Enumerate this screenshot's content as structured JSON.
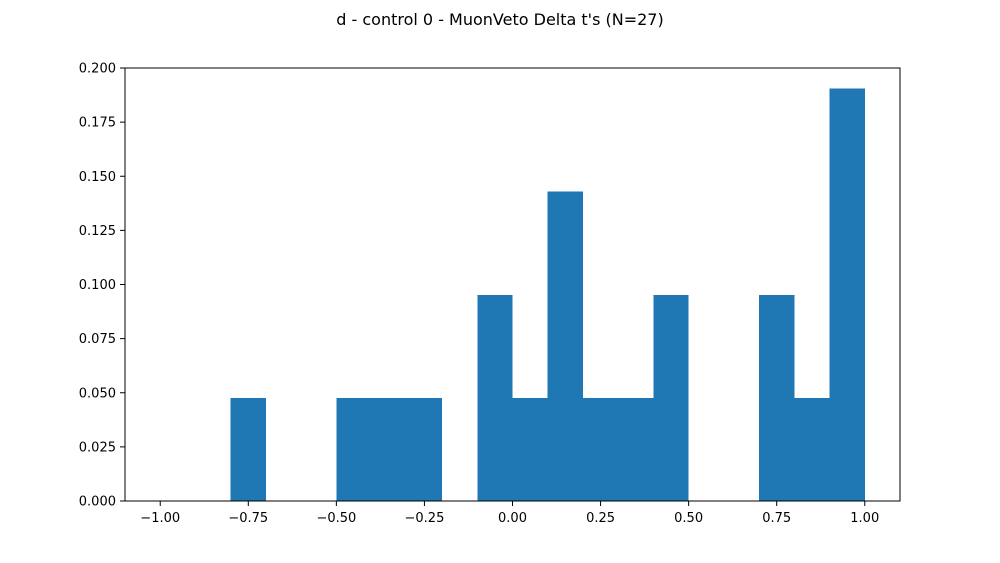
{
  "chart_data": {
    "type": "bar",
    "title": "d - control 0 - MuonVeto Delta t's (N=27)",
    "xlabel": "",
    "ylabel": "",
    "xlim": [
      -1.1,
      1.1
    ],
    "ylim": [
      0,
      0.2
    ],
    "bar_color": "#1f77b4",
    "bins": [
      {
        "x0": -0.8,
        "x1": -0.7,
        "value": 0.0476
      },
      {
        "x0": -0.5,
        "x1": -0.4,
        "value": 0.0476
      },
      {
        "x0": -0.4,
        "x1": -0.3,
        "value": 0.0476
      },
      {
        "x0": -0.3,
        "x1": -0.2,
        "value": 0.0476
      },
      {
        "x0": -0.1,
        "x1": 0.0,
        "value": 0.0952
      },
      {
        "x0": 0.0,
        "x1": 0.1,
        "value": 0.0476
      },
      {
        "x0": 0.1,
        "x1": 0.2,
        "value": 0.1429
      },
      {
        "x0": 0.2,
        "x1": 0.3,
        "value": 0.0476
      },
      {
        "x0": 0.3,
        "x1": 0.4,
        "value": 0.0476
      },
      {
        "x0": 0.4,
        "x1": 0.5,
        "value": 0.0952
      },
      {
        "x0": 0.7,
        "x1": 0.8,
        "value": 0.0952
      },
      {
        "x0": 0.8,
        "x1": 0.9,
        "value": 0.0476
      },
      {
        "x0": 0.9,
        "x1": 1.0,
        "value": 0.1905
      }
    ],
    "x_ticks": [
      {
        "value": -1.0,
        "label": "−1.00"
      },
      {
        "value": -0.75,
        "label": "−0.75"
      },
      {
        "value": -0.5,
        "label": "−0.50"
      },
      {
        "value": -0.25,
        "label": "−0.25"
      },
      {
        "value": 0.0,
        "label": "0.00"
      },
      {
        "value": 0.25,
        "label": "0.25"
      },
      {
        "value": 0.5,
        "label": "0.50"
      },
      {
        "value": 0.75,
        "label": "0.75"
      },
      {
        "value": 1.0,
        "label": "1.00"
      }
    ],
    "y_ticks": [
      {
        "value": 0.0,
        "label": "0.000"
      },
      {
        "value": 0.025,
        "label": "0.025"
      },
      {
        "value": 0.05,
        "label": "0.050"
      },
      {
        "value": 0.075,
        "label": "0.075"
      },
      {
        "value": 0.1,
        "label": "0.100"
      },
      {
        "value": 0.125,
        "label": "0.125"
      },
      {
        "value": 0.15,
        "label": "0.150"
      },
      {
        "value": 0.175,
        "label": "0.175"
      },
      {
        "value": 0.2,
        "label": "0.200"
      }
    ],
    "grid": false,
    "legend": "none"
  }
}
